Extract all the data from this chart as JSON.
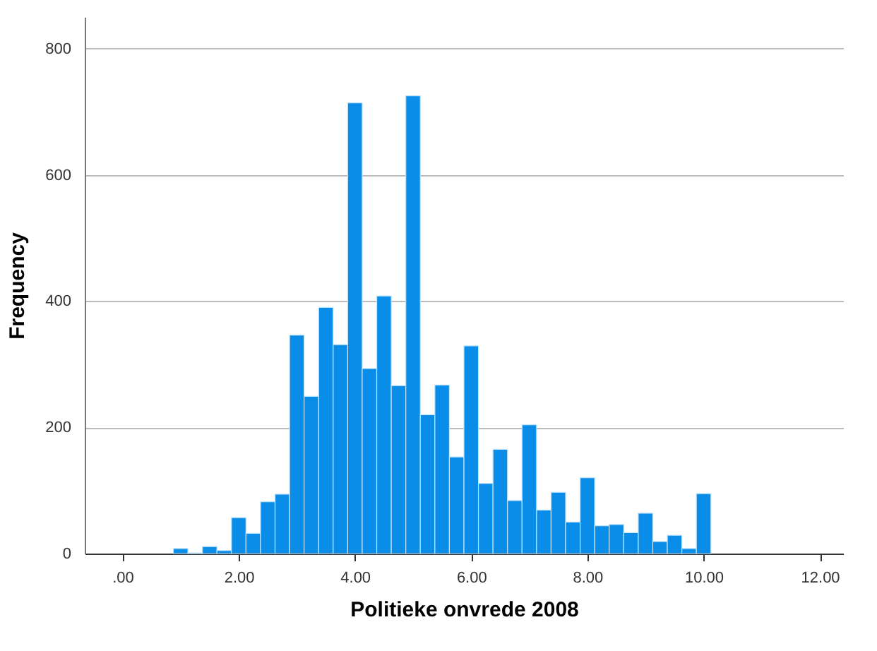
{
  "chart_data": {
    "type": "histogram",
    "xlabel": "Politieke  onvrede  2008",
    "ylabel": "Frequency",
    "bins": [
      0.875,
      1.125,
      1.375,
      1.625,
      1.875,
      2.125,
      2.375,
      2.625,
      2.875,
      3.125,
      3.375,
      3.625,
      3.875,
      4.125,
      4.375,
      4.625,
      4.875,
      5.125,
      5.375,
      5.625,
      5.875,
      6.125,
      6.375,
      6.625,
      6.875,
      7.125,
      7.375,
      7.625,
      7.875,
      8.125,
      8.375,
      8.625,
      8.875,
      9.125,
      9.375,
      9.625,
      9.875,
      10.125
    ],
    "values": [
      8,
      1,
      11,
      5,
      57,
      32,
      82,
      94,
      346,
      249,
      390,
      331,
      714,
      293,
      408,
      266,
      725,
      220,
      267,
      153,
      329,
      111,
      165,
      84,
      204,
      69,
      97,
      50,
      120,
      44,
      46,
      33,
      64,
      19,
      29,
      8,
      95
    ],
    "color": "#0a8de8",
    "xlim": [
      -0.65,
      12.4
    ],
    "xticks": [
      {
        "value": 0,
        "label": ".00"
      },
      {
        "value": 2,
        "label": "2.00"
      },
      {
        "value": 4,
        "label": "4.00"
      },
      {
        "value": 6,
        "label": "6.00"
      },
      {
        "value": 8,
        "label": "8.00"
      },
      {
        "value": 10,
        "label": "10.00"
      },
      {
        "value": 12,
        "label": "12.00"
      }
    ],
    "ylim": [
      0,
      850
    ],
    "yticks": [
      0,
      200,
      400,
      600,
      800
    ],
    "grid": "y"
  }
}
